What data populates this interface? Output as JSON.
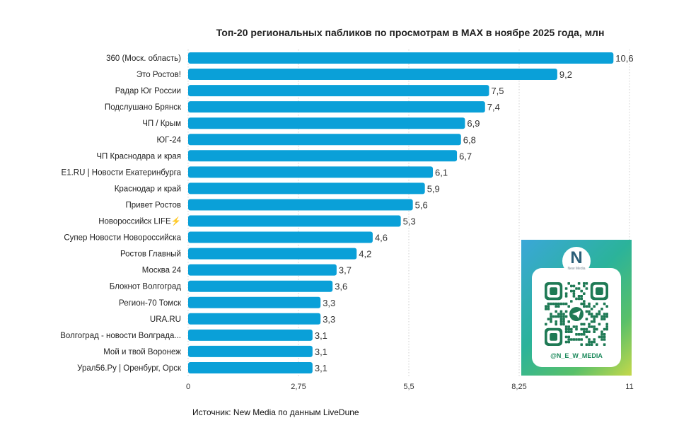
{
  "chart_data": {
    "type": "bar",
    "orientation": "horizontal",
    "title": "Топ-20 региональных пабликов по просмотрам в MAX в ноябре 2025 года, млн",
    "categories": [
      "360 (Моск. область)",
      "Это Ростов!",
      "Радар Юг России",
      "Подслушано Брянск",
      "ЧП / Крым",
      "ЮГ-24",
      "ЧП Краснодара и края",
      "E1.RU | Новости Екатеринбурга",
      "Краснодар и край",
      "Привет Ростов",
      "Новороссийск LIFE⚡",
      "Супер Новости Новороссийска",
      "Ростов Главный",
      "Москва 24",
      "Блокнот Волгоград",
      "Регион-70 Томск",
      "URA.RU",
      "Волгоград - новости Волграда...",
      "Мой и твой Воронеж",
      "Урал56.Ру | Оренбург, Орск"
    ],
    "values": [
      10.6,
      9.2,
      7.5,
      7.4,
      6.9,
      6.8,
      6.7,
      6.1,
      5.9,
      5.6,
      5.3,
      4.6,
      4.2,
      3.7,
      3.6,
      3.3,
      3.3,
      3.1,
      3.1,
      3.1
    ],
    "value_labels": [
      "10,6",
      "9,2",
      "7,5",
      "7,4",
      "6,9",
      "6,8",
      "6,7",
      "6,1",
      "5,9",
      "5,6",
      "5,3",
      "4,6",
      "4,2",
      "3,7",
      "3,6",
      "3,3",
      "3,3",
      "3,1",
      "3,1",
      "3,1"
    ],
    "xlim": [
      0,
      11
    ],
    "xticks": [
      0,
      2.75,
      5.5,
      8.25,
      11
    ],
    "xtick_labels": [
      "0",
      "2,75",
      "5,5",
      "8,25",
      "11"
    ],
    "grid": "vertical dotted",
    "bar_color": "#0aa0d8"
  },
  "source": "Источник: New Media по данным LiveDune",
  "qr": {
    "logo_letter": "N",
    "logo_text": "New Media",
    "handle": "@N_E_W_MEDIA",
    "icon": "telegram-icon"
  }
}
